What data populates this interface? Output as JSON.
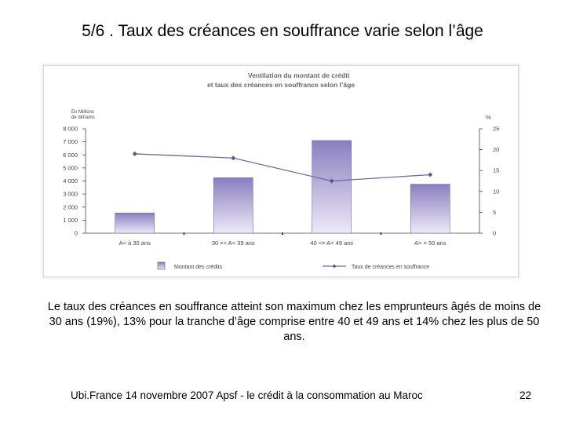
{
  "slide": {
    "title": "5/6 . Taux des créances en souffrance varie selon l’âge",
    "caption": "Le taux des créances en souffrance atteint son maximum chez les emprunteurs âgés de moins de 30 ans (19%), 13% pour la tranche d’âge comprise entre 40 et 49 ans et  14% chez les plus de 50 ans.",
    "footer": "Ubi.France 14 novembre 2007  Apsf - le crédit à la consommation au Maroc",
    "page_number": "22"
  },
  "colors": {
    "bar": "#8a7fbf",
    "bar_light": "#ede9f7",
    "line": "#6d6aa8",
    "axis": "#444444",
    "title_text": "#666666"
  },
  "chart_data": {
    "type": "bar",
    "title_line1": "Ventilation du montant de crédit",
    "title_line2": "et taux des créances en souffrance selon l’âge",
    "left_axis_unit_line1": "En Millions",
    "left_axis_unit_line2": "de dirhams",
    "right_axis_unit": "%",
    "categories": [
      "A< à 30 ans",
      "30 =< A< 39 ans",
      "40 <= A< 49 ans",
      "A> = 50 ans"
    ],
    "series": [
      {
        "name": "Montant des crédits",
        "kind": "bar",
        "axis": "left",
        "values": [
          1550,
          4250,
          7100,
          3750
        ]
      },
      {
        "name": "Taux de créances en souffrance",
        "kind": "line",
        "axis": "right",
        "values": [
          19,
          18,
          12.5,
          14
        ]
      }
    ],
    "left_ylim": [
      0,
      8000
    ],
    "left_ticks": [
      "0",
      "1 000",
      "2 000",
      "3 000",
      "4 000",
      "5 000",
      "6 000",
      "7 000",
      "8 000"
    ],
    "right_ylim": [
      0,
      25
    ],
    "right_ticks": [
      "0",
      "5",
      "10",
      "15",
      "20",
      "25"
    ],
    "legend": [
      "Montant des crédits",
      "Taux de créances en souffrance"
    ]
  }
}
